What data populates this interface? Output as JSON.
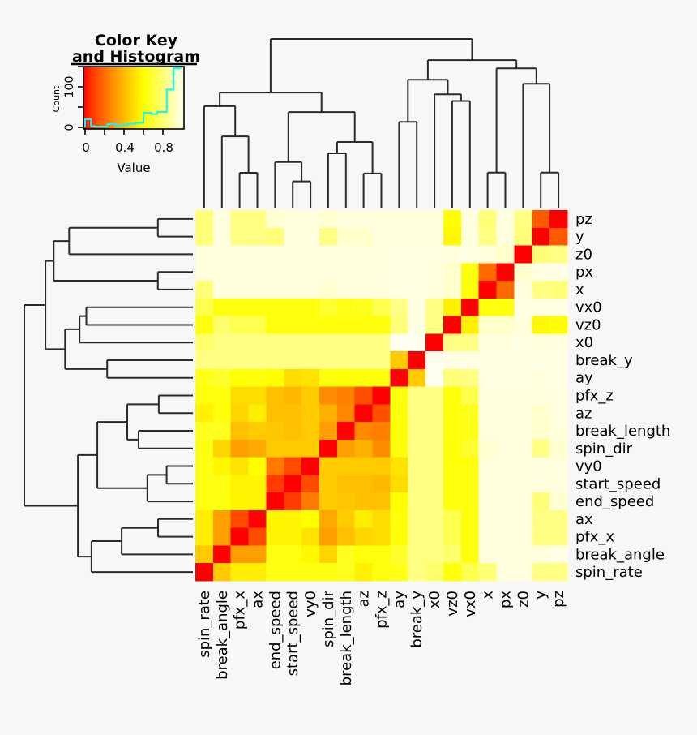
{
  "colors": {
    "background": "#f7f7f7",
    "dendrogram_line": "#2b2b2b",
    "heat_low": "#FF0000",
    "heat_mid": "#FFFF00",
    "heat_high": "#FFFFF0",
    "histogram_line": "#00FFFF",
    "text": "#000000"
  },
  "color_key": {
    "title_line1": "Color Key",
    "title_line2": "and Histogram",
    "xlabel": "Value",
    "ylabel": "Count",
    "xtick_labels": [
      "0",
      "0.4",
      "0.8"
    ],
    "xtick_values": [
      0,
      0.4,
      0.8
    ],
    "minor_xticks": [
      0.2,
      0.6
    ],
    "ytick_labels": [
      "100",
      "0"
    ],
    "ytick_values": [
      100,
      0
    ],
    "ytick_marks": [
      0,
      50,
      100,
      150
    ]
  },
  "chart_data": {
    "type": "heatmap",
    "subtype": "clustered correlation-distance heatmap with dendrograms (heatmap.2 style)",
    "value_scale": {
      "min": 0,
      "max": 1,
      "low": "red",
      "high": "pale cream",
      "note": "0 = red (diagonal / identical), 1 = pale (unrelated)"
    },
    "columns": [
      "spin_rate",
      "break_angle",
      "pfx_x",
      "ax",
      "end_speed",
      "start_speed",
      "vy0",
      "spin_dir",
      "break_length",
      "az",
      "pfx_z",
      "ay",
      "break_y",
      "x0",
      "vz0",
      "vx0",
      "x",
      "px",
      "z0",
      "y",
      "pz"
    ],
    "rows": [
      "pz",
      "y",
      "z0",
      "px",
      "x",
      "vx0",
      "vz0",
      "x0",
      "break_y",
      "ay",
      "pfx_z",
      "az",
      "break_length",
      "spin_dir",
      "vy0",
      "start_speed",
      "end_speed",
      "ax",
      "pfx_x",
      "break_angle",
      "spin_rate"
    ],
    "matrix": [
      [
        0.8,
        0.97,
        0.82,
        0.82,
        0.95,
        0.97,
        0.97,
        0.95,
        0.97,
        0.97,
        0.97,
        0.97,
        0.97,
        0.97,
        0.6,
        0.97,
        0.8,
        0.97,
        0.82,
        0.16,
        0.0
      ],
      [
        0.8,
        0.97,
        0.82,
        0.82,
        0.8,
        0.97,
        0.97,
        0.82,
        0.94,
        0.94,
        0.97,
        0.97,
        0.97,
        0.97,
        0.58,
        0.97,
        0.82,
        0.97,
        0.8,
        0.0,
        0.16
      ],
      [
        0.97,
        0.97,
        0.97,
        0.97,
        0.97,
        0.97,
        0.97,
        0.97,
        0.97,
        0.97,
        0.97,
        0.98,
        0.98,
        0.98,
        0.97,
        0.98,
        0.97,
        0.94,
        0.0,
        0.8,
        0.82
      ],
      [
        0.97,
        0.97,
        0.97,
        0.97,
        0.97,
        0.97,
        0.97,
        0.97,
        0.97,
        0.97,
        0.97,
        0.98,
        0.98,
        0.97,
        0.94,
        0.62,
        0.2,
        0.0,
        0.94,
        0.98,
        0.98
      ],
      [
        0.8,
        0.97,
        0.97,
        0.97,
        0.97,
        0.97,
        0.97,
        0.95,
        0.97,
        0.97,
        0.97,
        0.98,
        0.98,
        0.97,
        0.94,
        0.62,
        0.0,
        0.2,
        0.97,
        0.82,
        0.8
      ],
      [
        0.73,
        0.62,
        0.62,
        0.62,
        0.62,
        0.62,
        0.62,
        0.68,
        0.64,
        0.65,
        0.73,
        0.82,
        0.98,
        0.82,
        0.56,
        0.0,
        0.62,
        0.62,
        0.98,
        0.98,
        0.98
      ],
      [
        0.62,
        0.78,
        0.73,
        0.73,
        0.62,
        0.62,
        0.62,
        0.62,
        0.62,
        0.62,
        0.62,
        0.8,
        0.98,
        0.82,
        0.0,
        0.56,
        0.94,
        0.94,
        0.97,
        0.58,
        0.6
      ],
      [
        0.78,
        0.82,
        0.82,
        0.82,
        0.82,
        0.82,
        0.82,
        0.82,
        0.82,
        0.82,
        0.82,
        1.0,
        1.0,
        0.0,
        0.82,
        0.82,
        0.97,
        0.97,
        0.98,
        0.97,
        0.97
      ],
      [
        0.82,
        0.82,
        0.82,
        0.82,
        0.82,
        0.82,
        0.82,
        0.82,
        0.82,
        0.82,
        0.82,
        0.45,
        0.0,
        1.0,
        0.98,
        0.98,
        0.98,
        0.98,
        0.98,
        0.98,
        0.98
      ],
      [
        0.64,
        0.67,
        0.61,
        0.62,
        0.6,
        0.5,
        0.52,
        0.62,
        0.61,
        0.62,
        0.62,
        0.0,
        0.45,
        1.0,
        0.8,
        0.82,
        0.98,
        0.98,
        0.98,
        0.97,
        0.98
      ],
      [
        0.62,
        0.62,
        0.5,
        0.5,
        0.42,
        0.4,
        0.45,
        0.28,
        0.25,
        0.14,
        0.0,
        0.62,
        0.82,
        0.82,
        0.62,
        0.73,
        0.97,
        0.97,
        0.97,
        0.97,
        0.97
      ],
      [
        0.56,
        0.62,
        0.48,
        0.55,
        0.42,
        0.42,
        0.45,
        0.38,
        0.27,
        0.0,
        0.14,
        0.62,
        0.82,
        0.82,
        0.62,
        0.65,
        0.97,
        0.97,
        0.97,
        0.94,
        0.97
      ],
      [
        0.65,
        0.65,
        0.42,
        0.45,
        0.44,
        0.42,
        0.45,
        0.33,
        0.0,
        0.27,
        0.25,
        0.61,
        0.82,
        0.82,
        0.62,
        0.64,
        0.97,
        0.97,
        0.97,
        0.94,
        0.97
      ],
      [
        0.63,
        0.48,
        0.33,
        0.36,
        0.45,
        0.45,
        0.45,
        0.0,
        0.33,
        0.38,
        0.28,
        0.62,
        0.82,
        0.82,
        0.62,
        0.68,
        0.95,
        0.97,
        0.97,
        0.82,
        0.95
      ],
      [
        0.63,
        0.58,
        0.52,
        0.6,
        0.24,
        0.13,
        0.0,
        0.45,
        0.45,
        0.45,
        0.45,
        0.52,
        0.82,
        0.82,
        0.62,
        0.62,
        0.97,
        0.97,
        0.97,
        0.97,
        0.97
      ],
      [
        0.63,
        0.63,
        0.57,
        0.57,
        0.1,
        0.0,
        0.13,
        0.45,
        0.42,
        0.42,
        0.4,
        0.5,
        0.82,
        0.82,
        0.62,
        0.62,
        0.97,
        0.97,
        0.97,
        0.97,
        0.97
      ],
      [
        0.63,
        0.63,
        0.57,
        0.57,
        0.0,
        0.1,
        0.24,
        0.45,
        0.44,
        0.42,
        0.42,
        0.6,
        0.82,
        0.82,
        0.62,
        0.62,
        0.97,
        0.97,
        0.97,
        0.8,
        0.95
      ],
      [
        0.55,
        0.33,
        0.13,
        0.0,
        0.57,
        0.57,
        0.6,
        0.36,
        0.45,
        0.55,
        0.5,
        0.62,
        0.82,
        0.82,
        0.73,
        0.62,
        0.97,
        0.97,
        0.97,
        0.82,
        0.82
      ],
      [
        0.55,
        0.33,
        0.0,
        0.13,
        0.57,
        0.57,
        0.52,
        0.33,
        0.42,
        0.48,
        0.5,
        0.61,
        0.82,
        0.82,
        0.73,
        0.62,
        0.97,
        0.97,
        0.97,
        0.82,
        0.82
      ],
      [
        0.45,
        0.0,
        0.33,
        0.33,
        0.63,
        0.63,
        0.58,
        0.48,
        0.65,
        0.62,
        0.62,
        0.67,
        0.82,
        0.82,
        0.78,
        0.62,
        0.97,
        0.97,
        0.97,
        0.97,
        0.98
      ],
      [
        0.0,
        0.45,
        0.55,
        0.55,
        0.63,
        0.63,
        0.63,
        0.63,
        0.65,
        0.56,
        0.62,
        0.64,
        0.82,
        0.78,
        0.62,
        0.73,
        0.8,
        0.97,
        0.97,
        0.82,
        0.82
      ]
    ],
    "column_dendrogram": {
      "h": 0.963,
      "c": [
        {
          "h": 0.657,
          "c": [
            {
              "h": 0.579,
              "c": [
                0,
                {
                  "h": 0.407,
                  "c": [
                    1,
                    {
                      "h": 0.199,
                      "c": [
                        2,
                        3
                      ]
                    }
                  ]
                }
              ]
            },
            {
              "h": 0.546,
              "c": [
                {
                  "h": 0.26,
                  "c": [
                    4,
                    {
                      "h": 0.15,
                      "c": [
                        5,
                        6
                      ]
                    }
                  ]
                },
                {
                  "h": 0.375,
                  "c": [
                    {
                      "h": 0.31,
                      "c": [
                        7,
                        8
                      ]
                    },
                    {
                      "h": 0.195,
                      "c": [
                        9,
                        10
                      ]
                    }
                  ]
                }
              ]
            }
          ]
        },
        {
          "h": 0.842,
          "c": [
            {
              "h": 0.73,
              "c": [
                {
                  "h": 0.49,
                  "c": [
                    11,
                    12
                  ]
                },
                {
                  "h": 0.647,
                  "c": [
                    13,
                    {
                      "h": 0.609,
                      "c": [
                        14,
                        15
                      ]
                    }
                  ]
                }
              ]
            },
            {
              "h": 0.795,
              "c": [
                {
                  "h": 0.2,
                  "c": [
                    16,
                    17
                  ]
                },
                {
                  "h": 0.707,
                  "c": [
                    18,
                    {
                      "h": 0.2,
                      "c": [
                        19,
                        20
                      ]
                    }
                  ]
                }
              ]
            }
          ]
        }
      ]
    },
    "row_dendrogram": "mirror of column_dendrogram (row i = column 21-i)",
    "color_key_histogram": {
      "count_axis_range": [
        0,
        150
      ],
      "segments_value_from_to_count": [
        [
          0.0,
          0.06,
          20
        ],
        [
          0.06,
          0.1,
          3
        ],
        [
          0.1,
          0.23,
          2
        ],
        [
          0.23,
          0.32,
          8
        ],
        [
          0.32,
          0.36,
          3
        ],
        [
          0.36,
          0.44,
          6
        ],
        [
          0.44,
          0.52,
          9
        ],
        [
          0.52,
          0.6,
          11
        ],
        [
          0.6,
          0.68,
          36
        ],
        [
          0.68,
          0.74,
          33
        ],
        [
          0.74,
          0.84,
          38
        ],
        [
          0.84,
          0.91,
          93
        ],
        [
          0.91,
          0.98,
          146
        ],
        [
          0.98,
          1.0,
          150
        ]
      ]
    }
  }
}
